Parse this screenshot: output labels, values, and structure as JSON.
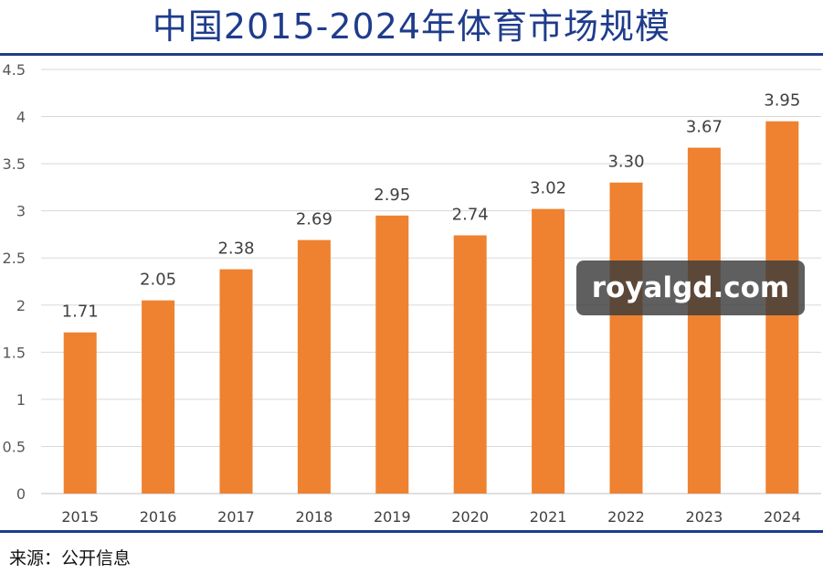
{
  "title": "中国2015-2024年体育市场规模",
  "source": "来源：公开信息",
  "watermark": "royalgd.com",
  "colors": {
    "title": "#1f3c8c",
    "bar": "#ee8230",
    "rule": "#1f3c8c"
  },
  "chart_data": {
    "type": "bar",
    "title": "中国2015-2024年体育市场规模",
    "categories": [
      "2015",
      "2016",
      "2017",
      "2018",
      "2019",
      "2020",
      "2021",
      "2022",
      "2023",
      "2024"
    ],
    "values": [
      1.71,
      2.05,
      2.38,
      2.69,
      2.95,
      2.74,
      3.02,
      3.3,
      3.67,
      3.95
    ],
    "value_labels": [
      "1.71",
      "2.05",
      "2.38",
      "2.69",
      "2.95",
      "2.74",
      "3.02",
      "3.30",
      "3.67",
      "3.95"
    ],
    "yticks": [
      "0",
      "0.5",
      "1",
      "1.5",
      "2",
      "2.5",
      "3",
      "3.5",
      "4",
      "4.5"
    ],
    "ylim": [
      0,
      4.5
    ],
    "grid": true,
    "legend": "none"
  }
}
